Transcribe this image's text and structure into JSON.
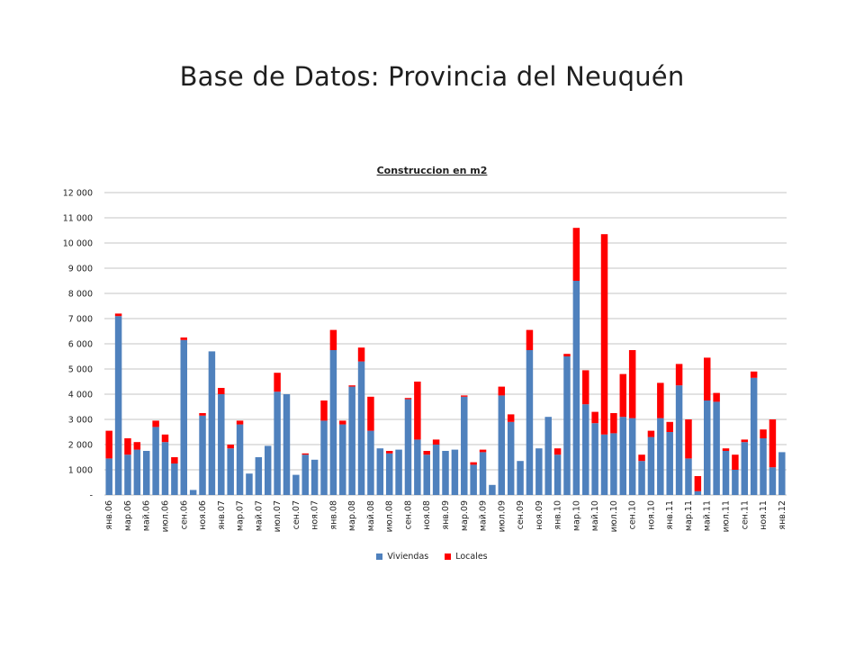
{
  "page": {
    "title": "Base de Datos: Provincia del Neuquén"
  },
  "chart_data": {
    "type": "bar",
    "stacked": true,
    "title": "Construccion en m2",
    "xlabel": "",
    "ylabel": "",
    "ylim": [
      0,
      12000
    ],
    "grid": true,
    "legend_position": "bottom",
    "yticks": [
      {
        "value": 0,
        "label": "-"
      },
      {
        "value": 1000,
        "label": "1 000"
      },
      {
        "value": 2000,
        "label": "2 000"
      },
      {
        "value": 3000,
        "label": "3 000"
      },
      {
        "value": 4000,
        "label": "4 000"
      },
      {
        "value": 5000,
        "label": "5 000"
      },
      {
        "value": 6000,
        "label": "6 000"
      },
      {
        "value": 7000,
        "label": "7 000"
      },
      {
        "value": 8000,
        "label": "8 000"
      },
      {
        "value": 9000,
        "label": "9 000"
      },
      {
        "value": 10000,
        "label": "10 000"
      },
      {
        "value": 11000,
        "label": "11 000"
      },
      {
        "value": 12000,
        "label": "12 000"
      }
    ],
    "categories": [
      "янв.06",
      "фев.06",
      "мар.06",
      "апр.06",
      "май.06",
      "июн.06",
      "июл.06",
      "авг.06",
      "сен.06",
      "окт.06",
      "ноя.06",
      "дек.06",
      "янв.07",
      "фев.07",
      "мар.07",
      "апр.07",
      "май.07",
      "июн.07",
      "июл.07",
      "авг.07",
      "сен.07",
      "окт.07",
      "ноя.07",
      "дек.07",
      "янв.08",
      "фев.08",
      "мар.08",
      "апр.08",
      "май.08",
      "июн.08",
      "июл.08",
      "авг.08",
      "сен.08",
      "окт.08",
      "ноя.08",
      "дек.08",
      "янв.09",
      "фев.09",
      "мар.09",
      "апр.09",
      "май.09",
      "июн.09",
      "июл.09",
      "авг.09",
      "сен.09",
      "окт.09",
      "ноя.09",
      "дек.09",
      "янв.10",
      "фев.10",
      "мар.10",
      "апр.10",
      "май.10",
      "июн.10",
      "июл.10",
      "авг.10",
      "сен.10",
      "окт.10",
      "ноя.10",
      "дек.10",
      "янв.11",
      "фев.11",
      "мар.11",
      "апр.11",
      "май.11",
      "июн.11",
      "июл.11",
      "авг.11",
      "сен.11",
      "окт.11",
      "ноя.11",
      "дек.11",
      "янв.12"
    ],
    "shown_tick_labels": [
      "янв.06",
      "мар.06",
      "май.06",
      "июл.06",
      "сен.06",
      "ноя.06",
      "янв.07",
      "мар.07",
      "май.07",
      "июл.07",
      "сен.07",
      "ноя.07",
      "янв.08",
      "мар.08",
      "май.08",
      "июл.08",
      "сен.08",
      "ноя.08",
      "янв.09",
      "мар.09",
      "май.09",
      "июл.09",
      "сен.09",
      "ноя.09",
      "янв.10",
      "мар.10",
      "май.10",
      "июл.10",
      "сен.10",
      "ноя.10",
      "янв.11",
      "мар.11",
      "май.11",
      "июл.11",
      "сен.11",
      "ноя.11",
      "янв.12"
    ],
    "series": [
      {
        "name": "Viviendas",
        "color": "#4f81bd",
        "values": [
          1450,
          7100,
          1600,
          1800,
          1750,
          2700,
          2100,
          1250,
          6150,
          200,
          3150,
          5700,
          4000,
          1850,
          2800,
          850,
          1500,
          1950,
          4100,
          4000,
          800,
          1600,
          1400,
          2950,
          5750,
          2800,
          4300,
          5300,
          2550,
          1850,
          1650,
          1800,
          3800,
          2200,
          1600,
          2000,
          1750,
          1800,
          3900,
          1200,
          1700,
          400,
          3950,
          2900,
          1350,
          5750,
          1850,
          3100,
          1600,
          5500,
          8500,
          3600,
          2850,
          2400,
          2450,
          3100,
          3050,
          1350,
          2300,
          3050,
          2500,
          4350,
          1450,
          150,
          3750,
          3700,
          1750,
          1000,
          2100,
          4650,
          2250,
          1100,
          1700
        ]
      },
      {
        "name": "Locales",
        "color": "#ff0000",
        "values": [
          1100,
          100,
          650,
          300,
          0,
          250,
          300,
          250,
          100,
          0,
          100,
          0,
          250,
          150,
          150,
          0,
          0,
          0,
          750,
          0,
          0,
          50,
          0,
          800,
          800,
          150,
          50,
          550,
          1350,
          0,
          100,
          0,
          50,
          2300,
          150,
          200,
          0,
          0,
          50,
          100,
          100,
          0,
          350,
          300,
          0,
          800,
          0,
          0,
          250,
          100,
          2100,
          1350,
          450,
          7950,
          800,
          1700,
          2700,
          250,
          250,
          1400,
          400,
          850,
          1550,
          600,
          1700,
          350,
          100,
          600,
          100,
          250,
          350,
          1900,
          0
        ]
      }
    ]
  }
}
